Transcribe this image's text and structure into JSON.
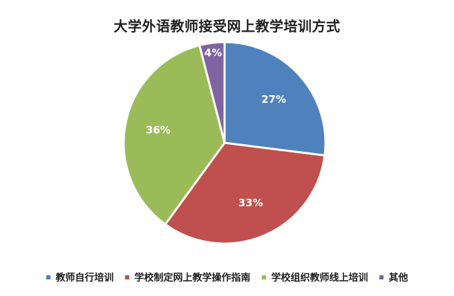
{
  "chart_data": {
    "type": "pie",
    "title": "大学外语教师接受网上教学培训方式",
    "slices": [
      {
        "label": "教师自行培训",
        "value": 27,
        "display": "27%",
        "color": "#4F81BD"
      },
      {
        "label": "学校制定网上教学操作指南",
        "value": 33,
        "display": "33%",
        "color": "#C0504D"
      },
      {
        "label": "学校组织教师线上培训",
        "value": 36,
        "display": "36%",
        "color": "#9BBB59"
      },
      {
        "label": "其他",
        "value": 4,
        "display": "4%",
        "color": "#8064A2"
      }
    ],
    "legend_position": "bottom",
    "start_angle": "12 o'clock",
    "direction": "clockwise"
  }
}
